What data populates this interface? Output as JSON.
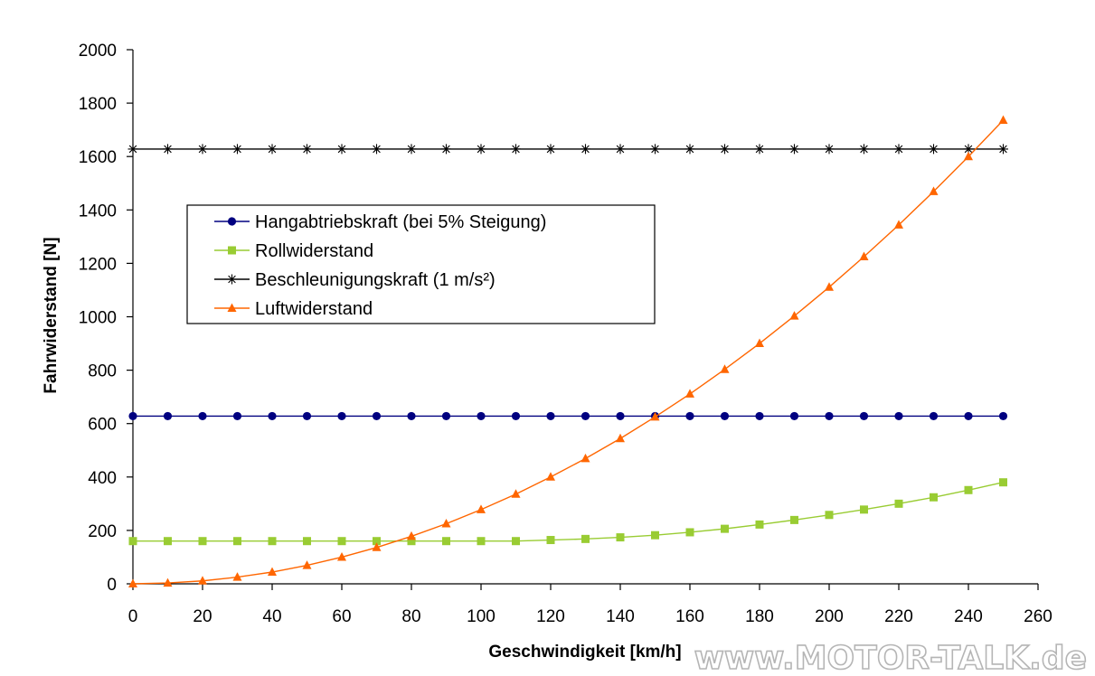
{
  "watermark": "www.MOTOR-TALK.de",
  "chart_data": {
    "type": "line",
    "title": "",
    "xlabel": "Geschwindigkeit [km/h]",
    "ylabel": "Fahrwiderstand [N]",
    "xlim": [
      0,
      260
    ],
    "ylim": [
      0,
      2000
    ],
    "xticks": [
      "0",
      "20",
      "40",
      "60",
      "80",
      "100",
      "120",
      "140",
      "160",
      "180",
      "200",
      "220",
      "240",
      "260"
    ],
    "yticks": [
      "0",
      "200",
      "400",
      "600",
      "800",
      "1000",
      "1200",
      "1400",
      "1600",
      "1800",
      "2000"
    ],
    "grid": false,
    "legend_position": "upper-left",
    "x": [
      0,
      10,
      20,
      30,
      40,
      50,
      60,
      70,
      80,
      90,
      100,
      110,
      120,
      130,
      140,
      150,
      160,
      170,
      180,
      190,
      200,
      210,
      220,
      230,
      240,
      250
    ],
    "series": [
      {
        "name": "Hangabtriebskraft (bei 5% Steigung)",
        "color": "#000080",
        "marker": "circle",
        "values": [
          628,
          628,
          628,
          628,
          628,
          628,
          628,
          628,
          628,
          628,
          628,
          628,
          628,
          628,
          628,
          628,
          628,
          628,
          628,
          628,
          628,
          628,
          628,
          628,
          628,
          628
        ]
      },
      {
        "name": "Rollwiderstand",
        "color": "#99cc33",
        "marker": "square",
        "values": [
          160,
          160,
          160,
          160,
          160,
          160,
          160,
          160,
          160,
          160,
          160,
          160,
          164,
          168,
          174,
          182,
          193,
          206,
          222,
          239,
          258,
          278,
          300,
          324,
          351,
          380
        ]
      },
      {
        "name": "Beschleunigungskraft (1 m/s²)",
        "color": "#000000",
        "marker": "asterisk",
        "values": [
          1628,
          1628,
          1628,
          1628,
          1628,
          1628,
          1628,
          1628,
          1628,
          1628,
          1628,
          1628,
          1628,
          1628,
          1628,
          1628,
          1628,
          1628,
          1628,
          1628,
          1628,
          1628,
          1628,
          1628,
          1628,
          1628
        ]
      },
      {
        "name": "Luftwiderstand",
        "color": "#ff6600",
        "marker": "triangle",
        "values": [
          0,
          3,
          11,
          25,
          44,
          69,
          100,
          136,
          178,
          225,
          278,
          336,
          400,
          469,
          544,
          625,
          711,
          803,
          900,
          1003,
          1111,
          1225,
          1344,
          1469,
          1600,
          1736
        ]
      }
    ]
  }
}
